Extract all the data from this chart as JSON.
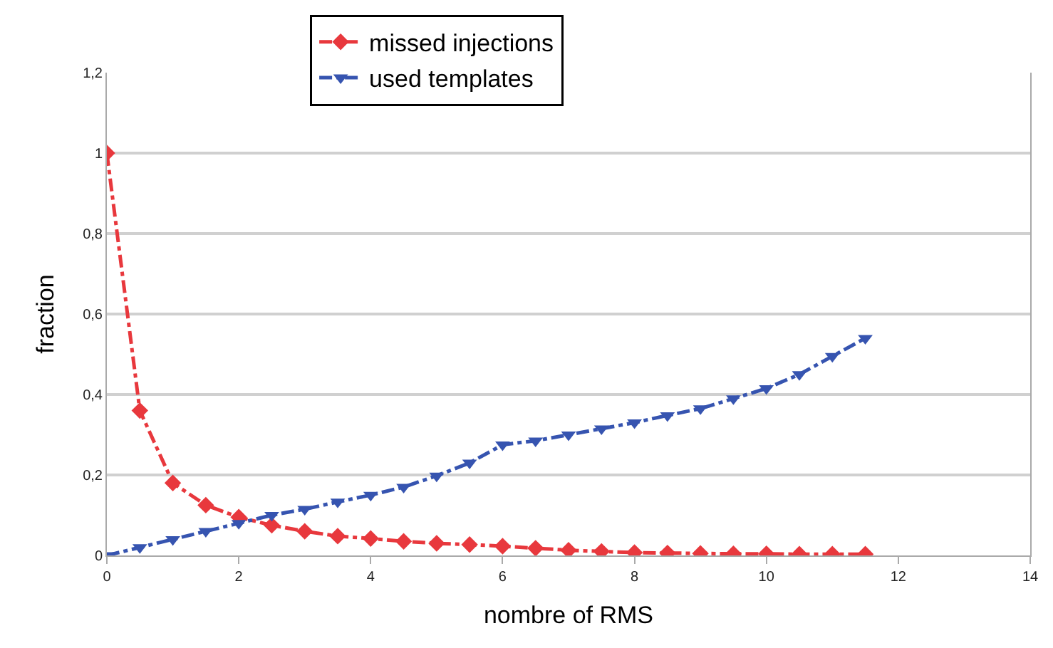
{
  "chart_data": {
    "type": "line",
    "xlabel": "nombre of RMS",
    "ylabel": "fraction",
    "x": [
      0,
      0.5,
      1,
      1.5,
      2,
      2.5,
      3,
      3.5,
      4,
      4.5,
      5,
      5.5,
      6,
      6.5,
      7,
      7.5,
      8,
      8.5,
      9,
      9.5,
      10,
      10.5,
      11,
      11.5
    ],
    "series": [
      {
        "name": "missed injections",
        "color": "#e8383d",
        "marker": "diamond",
        "values": [
          1,
          0.36,
          0.18,
          0.125,
          0.095,
          0.075,
          0.06,
          0.048,
          0.042,
          0.035,
          0.03,
          0.027,
          0.023,
          0.018,
          0.013,
          0.01,
          0.007,
          0.006,
          0.005,
          0.004,
          0.004,
          0.003,
          0.003,
          0.003
        ]
      },
      {
        "name": "used templates",
        "color": "#3654b0",
        "marker": "triangle",
        "values": [
          0,
          0.02,
          0.04,
          0.06,
          0.08,
          0.1,
          0.115,
          0.133,
          0.15,
          0.17,
          0.198,
          0.23,
          0.275,
          0.285,
          0.3,
          0.315,
          0.33,
          0.348,
          0.365,
          0.39,
          0.415,
          0.45,
          0.495,
          0.54
        ]
      }
    ],
    "xlim": [
      0,
      14
    ],
    "xticks": [
      0,
      2,
      4,
      6,
      8,
      10,
      12,
      14
    ],
    "ylim": [
      0,
      1.2
    ],
    "yticks": [
      0,
      {
        "value": 0.2,
        "label": "0,2"
      },
      {
        "value": 0.4,
        "label": "0,4"
      },
      {
        "value": 0.6,
        "label": "0,6"
      },
      {
        "value": 0.8,
        "label": "0,8"
      },
      1,
      {
        "value": 1.2,
        "label": "1,2"
      }
    ],
    "grid": "y",
    "legend": "top",
    "line_style": "dashed"
  }
}
